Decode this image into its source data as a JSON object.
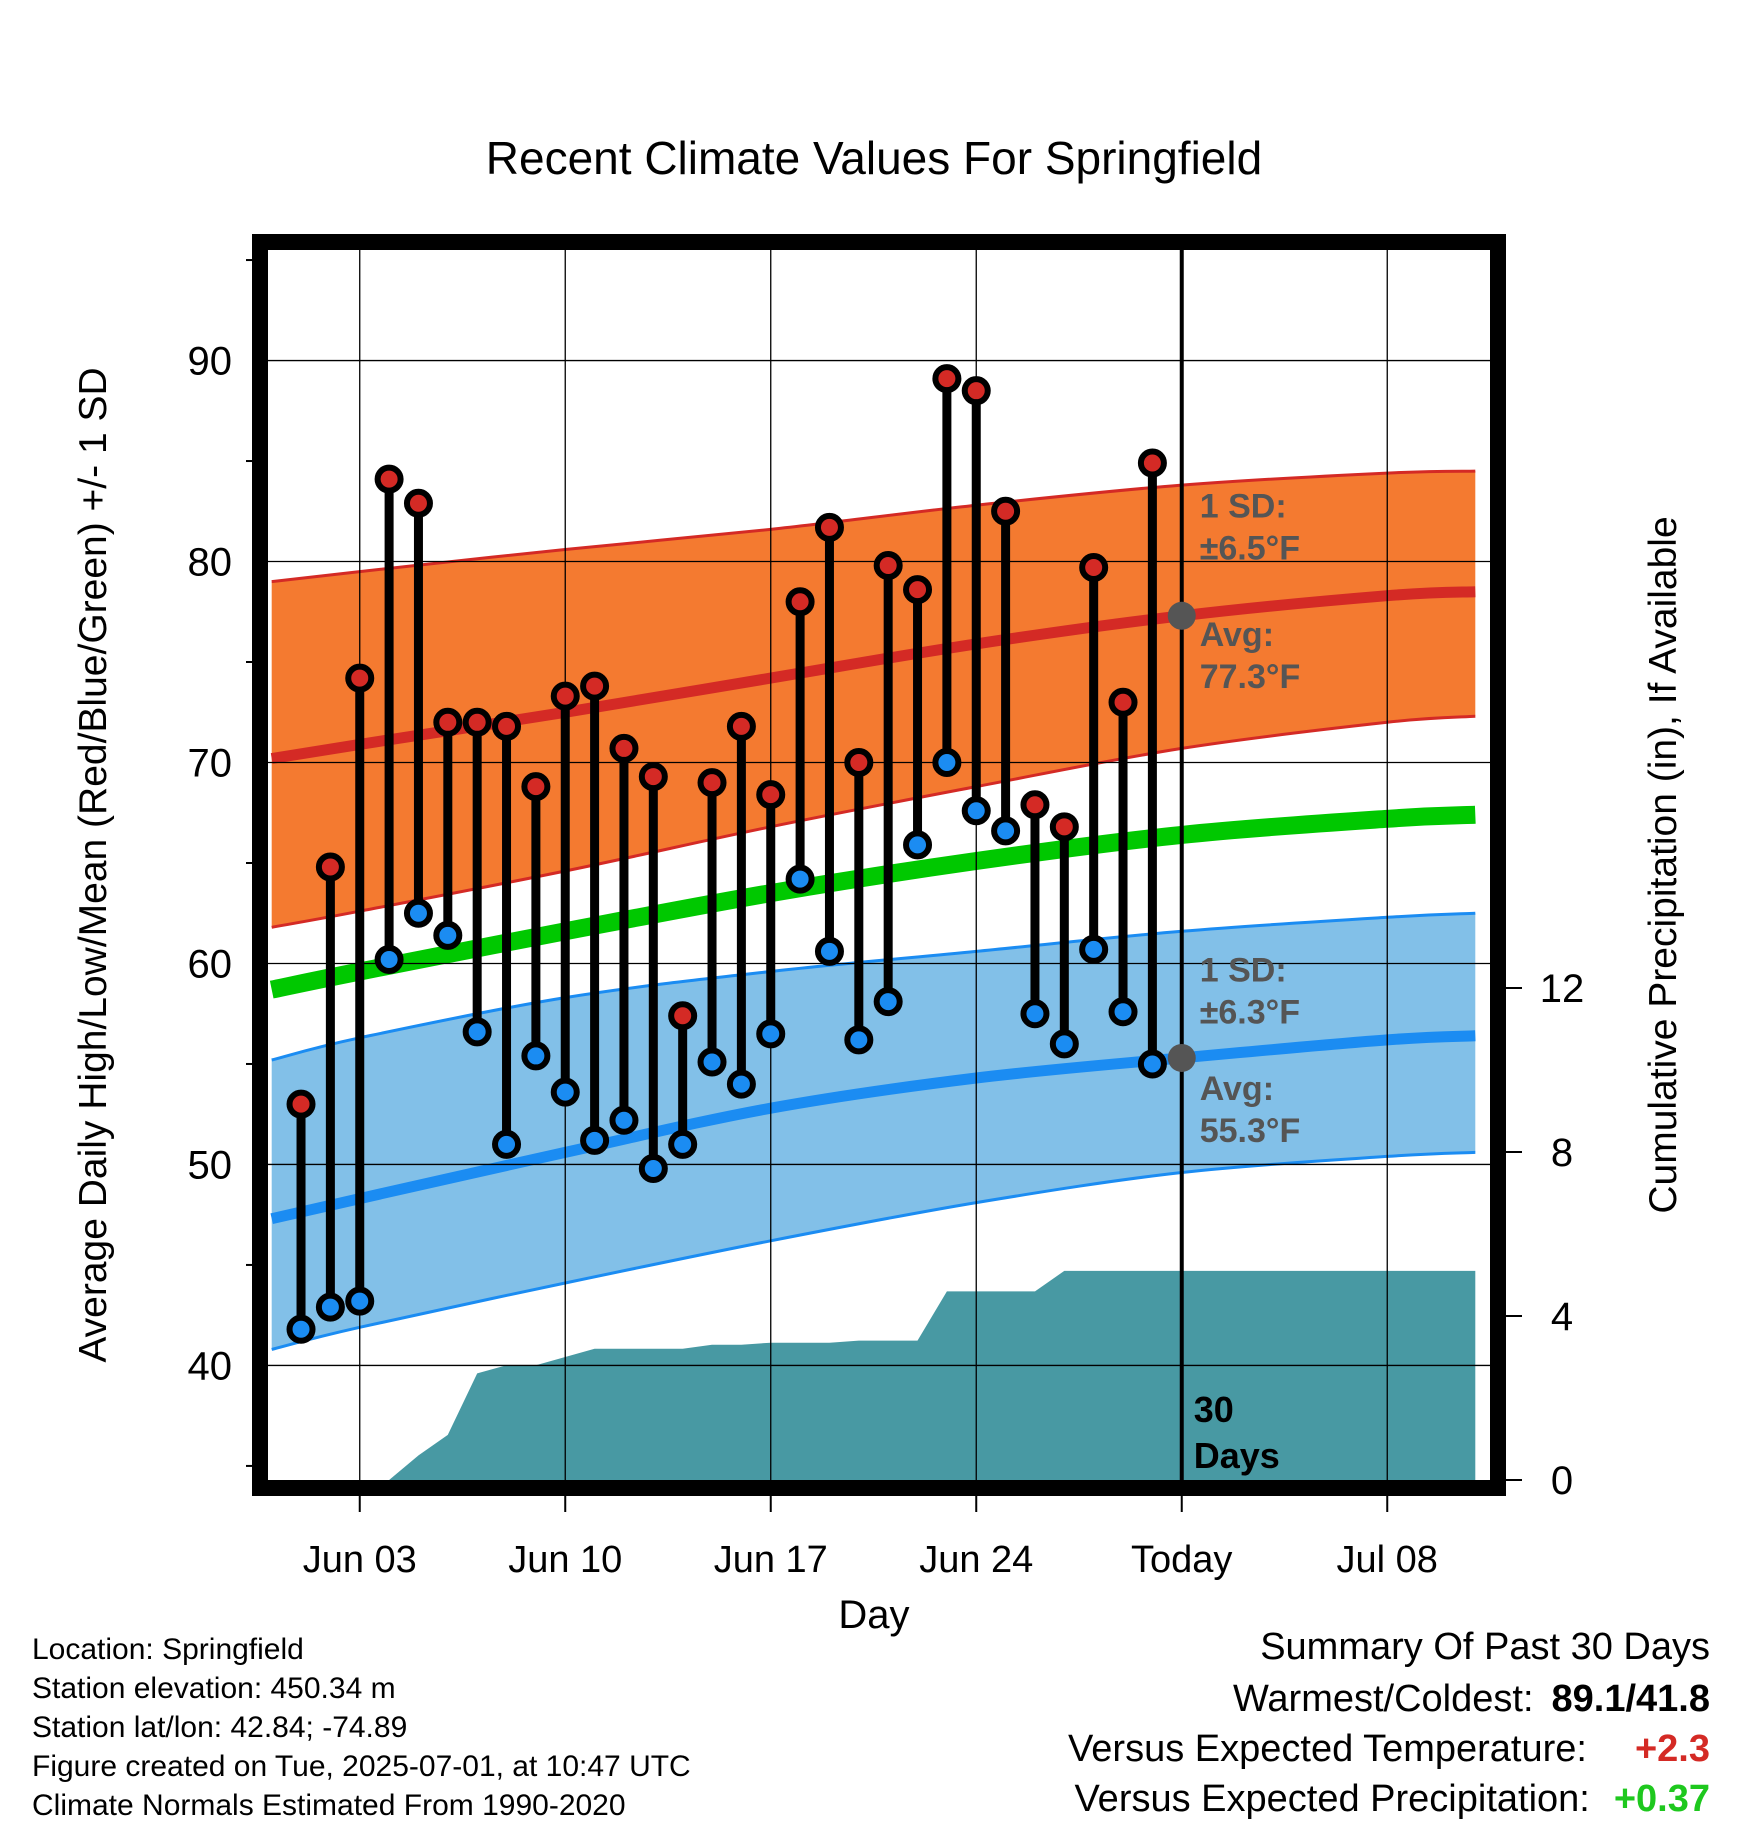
{
  "chart_data": {
    "type": "line",
    "title": "Recent Climate Values For Springfield",
    "xlabel": "Day",
    "ylabel": "Average Daily High/Low/Mean (Red/Blue/Green) +/- 1 SD",
    "y2label": "Cumulative Precipitation (in), If Available",
    "x_tick_labels": [
      "Jun 03",
      "Jun 10",
      "Jun 17",
      "Jun 24",
      "Today",
      "Jul 08"
    ],
    "x_tick_dates": [
      "2025-06-03",
      "2025-06-10",
      "2025-06-17",
      "2025-06-24",
      "2025-07-01",
      "2025-07-08"
    ],
    "xlim": [
      "2025-05-30T21:00",
      "2025-07-11T12:00"
    ],
    "ylim": [
      34.3,
      95.5
    ],
    "y_ticks": [
      40,
      50,
      60,
      70,
      80,
      90
    ],
    "y2lim": [
      0,
      30
    ],
    "y2_ticks": [
      0,
      4,
      8,
      12
    ],
    "grid": true,
    "today": "2025-07-01",
    "today_label": "30 Days",
    "daily_high_low": [
      {
        "date": "2025-06-01",
        "high": 53.0,
        "low": 41.8
      },
      {
        "date": "2025-06-02",
        "high": 64.8,
        "low": 42.9
      },
      {
        "date": "2025-06-03",
        "high": 74.2,
        "low": 43.2
      },
      {
        "date": "2025-06-04",
        "high": 84.1,
        "low": 60.2
      },
      {
        "date": "2025-06-05",
        "high": 82.9,
        "low": 62.5
      },
      {
        "date": "2025-06-06",
        "high": 72.0,
        "low": 61.4
      },
      {
        "date": "2025-06-07",
        "high": 72.0,
        "low": 56.6
      },
      {
        "date": "2025-06-08",
        "high": 71.8,
        "low": 51.0
      },
      {
        "date": "2025-06-09",
        "high": 68.8,
        "low": 55.4
      },
      {
        "date": "2025-06-10",
        "high": 73.3,
        "low": 53.6
      },
      {
        "date": "2025-06-11",
        "high": 73.8,
        "low": 51.2
      },
      {
        "date": "2025-06-12",
        "high": 70.7,
        "low": 52.2
      },
      {
        "date": "2025-06-13",
        "high": 69.3,
        "low": 49.8
      },
      {
        "date": "2025-06-14",
        "high": 57.4,
        "low": 51.0
      },
      {
        "date": "2025-06-15",
        "high": 69.0,
        "low": 55.1
      },
      {
        "date": "2025-06-16",
        "high": 71.8,
        "low": 54.0
      },
      {
        "date": "2025-06-17",
        "high": 68.4,
        "low": 56.5
      },
      {
        "date": "2025-06-18",
        "high": 78.0,
        "low": 64.2
      },
      {
        "date": "2025-06-19",
        "high": 81.7,
        "low": 60.6
      },
      {
        "date": "2025-06-20",
        "high": 70.0,
        "low": 56.2
      },
      {
        "date": "2025-06-21",
        "high": 79.8,
        "low": 58.1
      },
      {
        "date": "2025-06-22",
        "high": 78.6,
        "low": 65.9
      },
      {
        "date": "2025-06-23",
        "high": 89.1,
        "low": 70.0
      },
      {
        "date": "2025-06-24",
        "high": 88.5,
        "low": 67.6
      },
      {
        "date": "2025-06-25",
        "high": 82.5,
        "low": 66.6
      },
      {
        "date": "2025-06-26",
        "high": 67.9,
        "low": 57.5
      },
      {
        "date": "2025-06-27",
        "high": 66.8,
        "low": 56.0
      },
      {
        "date": "2025-06-28",
        "high": 79.7,
        "low": 60.7
      },
      {
        "date": "2025-06-29",
        "high": 73.0,
        "low": 57.6
      },
      {
        "date": "2025-06-30",
        "high": 84.9,
        "low": 55.0
      }
    ],
    "series": [
      {
        "name": "Avg high",
        "color": "#d42a25",
        "x": [
          "2025-05-31",
          "2025-06-03",
          "2025-06-10",
          "2025-06-17",
          "2025-06-24",
          "2025-07-01",
          "2025-07-08",
          "2025-07-11"
        ],
        "values": [
          70.2,
          70.9,
          72.5,
          74.2,
          75.9,
          77.3,
          78.3,
          78.5
        ]
      },
      {
        "name": "Avg high +1 SD",
        "color": "#d42a25",
        "x": [
          "2025-05-31",
          "2025-06-03",
          "2025-06-10",
          "2025-06-17",
          "2025-06-24",
          "2025-07-01",
          "2025-07-08",
          "2025-07-11"
        ],
        "values": [
          79.0,
          79.5,
          80.6,
          81.6,
          82.8,
          83.8,
          84.4,
          84.5
        ]
      },
      {
        "name": "Avg high -1 SD",
        "color": "#d42a25",
        "x": [
          "2025-05-31",
          "2025-06-03",
          "2025-06-10",
          "2025-06-17",
          "2025-06-24",
          "2025-07-01",
          "2025-07-08",
          "2025-07-11"
        ],
        "values": [
          61.8,
          62.6,
          64.6,
          66.8,
          68.8,
          70.7,
          72.0,
          72.3
        ]
      },
      {
        "name": "Avg mean",
        "color": "#00c800",
        "x": [
          "2025-05-31",
          "2025-06-03",
          "2025-06-10",
          "2025-06-17",
          "2025-06-24",
          "2025-07-01",
          "2025-07-08",
          "2025-07-11"
        ],
        "values": [
          58.7,
          59.6,
          61.6,
          63.5,
          65.1,
          66.4,
          67.2,
          67.4
        ]
      },
      {
        "name": "Avg low",
        "color": "#1b8cf2",
        "x": [
          "2025-05-31",
          "2025-06-03",
          "2025-06-10",
          "2025-06-17",
          "2025-06-24",
          "2025-07-01",
          "2025-07-08",
          "2025-07-11"
        ],
        "values": [
          47.3,
          48.3,
          50.6,
          52.8,
          54.3,
          55.3,
          56.2,
          56.4
        ]
      },
      {
        "name": "Avg low +1 SD",
        "color": "#1b8cf2",
        "x": [
          "2025-05-31",
          "2025-06-03",
          "2025-06-10",
          "2025-06-17",
          "2025-06-24",
          "2025-07-01",
          "2025-07-08",
          "2025-07-11"
        ],
        "values": [
          55.2,
          56.3,
          58.3,
          59.6,
          60.6,
          61.6,
          62.3,
          62.5
        ]
      },
      {
        "name": "Avg low -1 SD",
        "color": "#1b8cf2",
        "x": [
          "2025-05-31",
          "2025-06-03",
          "2025-06-10",
          "2025-06-17",
          "2025-06-24",
          "2025-07-01",
          "2025-07-08",
          "2025-07-11"
        ],
        "values": [
          40.8,
          41.9,
          44.1,
          46.2,
          48.1,
          49.6,
          50.4,
          50.6
        ]
      }
    ],
    "cumulative_precip": {
      "color": "#4899a3",
      "x": [
        "2025-06-02",
        "2025-06-03",
        "2025-06-04",
        "2025-06-05",
        "2025-06-06",
        "2025-06-07",
        "2025-06-08",
        "2025-06-09",
        "2025-06-10",
        "2025-06-11",
        "2025-06-12",
        "2025-06-13",
        "2025-06-14",
        "2025-06-15",
        "2025-06-16",
        "2025-06-17",
        "2025-06-18",
        "2025-06-19",
        "2025-06-20",
        "2025-06-21",
        "2025-06-22",
        "2025-06-23",
        "2025-06-24",
        "2025-06-25",
        "2025-06-26",
        "2025-06-27",
        "2025-06-28",
        "2025-06-29",
        "2025-06-30",
        "2025-07-01",
        "2025-07-11"
      ],
      "values": [
        0,
        0,
        0,
        0.6,
        1.1,
        2.6,
        2.8,
        2.8,
        3.0,
        3.2,
        3.2,
        3.2,
        3.2,
        3.3,
        3.3,
        3.35,
        3.35,
        3.35,
        3.4,
        3.4,
        3.4,
        4.6,
        4.6,
        4.6,
        4.6,
        5.1,
        5.1,
        5.1,
        5.1,
        5.1,
        5.1
      ]
    },
    "annotations": [
      {
        "text_1": "1 SD:",
        "text_2": "±6.5°F"
      },
      {
        "text_1": "Avg:",
        "text_2": "77.3°F",
        "value": 77.3
      },
      {
        "text_1": "1 SD:",
        "text_2": "±6.3°F"
      },
      {
        "text_1": "Avg:",
        "text_2": "55.3°F",
        "value": 55.3
      }
    ],
    "ytick_labels": [
      "40",
      "50",
      "60",
      "70",
      "80",
      "90"
    ],
    "y2tick_labels": [
      "0",
      "4",
      "8",
      "12"
    ]
  },
  "footer": {
    "location": "Location: Springfield",
    "elevation": "Station elevation: 450.34 m",
    "latlon": "Station lat/lon: 42.84; -74.89",
    "created": "Figure created on Tue, 2025-07-01, at 10:47 UTC",
    "normals": "Climate Normals Estimated From 1990-2020"
  },
  "summary": {
    "heading": "Summary Of Past 30 Days",
    "warmest_coldest_label": "Warmest/Coldest:",
    "warmest_coldest_value": "89.1/41.8",
    "temp_label": "Versus Expected Temperature:",
    "temp_value": "+2.3",
    "temp_color": "#d42a25",
    "precip_label": "Versus Expected Precipitation:",
    "precip_value": "+0.37",
    "precip_color": "#1ec81e"
  }
}
